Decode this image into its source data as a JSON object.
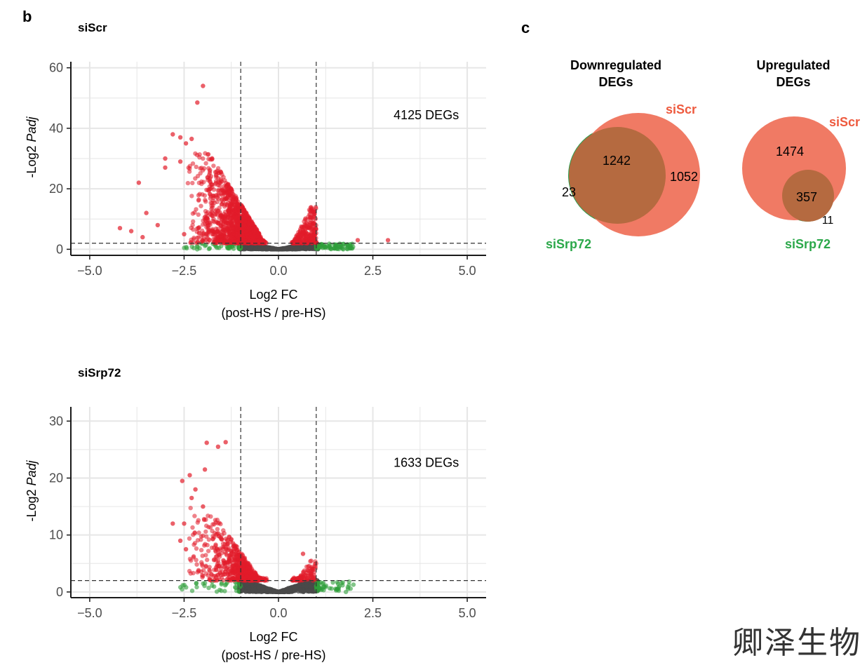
{
  "panel_b_label": "b",
  "panel_c_label": "c",
  "watermark": "卿泽生物",
  "colors": {
    "up_down_sig": "#e21c2a",
    "below_fc_sig": "#2e9e3a",
    "nonsig": "#4a4a4a",
    "venn_siscr": "#f07a64",
    "venn_sisrp72": "#2e9e4f",
    "venn_overlap": "#b56a40",
    "venn_label_siscr": "#ee5a3e",
    "venn_label_sisrp72": "#2ba84a",
    "grid": "#e6e6e6"
  },
  "chart_data": [
    {
      "type": "scatter",
      "title": "siScr",
      "xlabel_line1": "Log2 FC",
      "xlabel_line2": "(post-HS / pre-HS)",
      "ylabel_prefix": "-Log2 ",
      "ylabel_italic": "Padj",
      "xlim": [
        -5.5,
        5.5
      ],
      "ylim": [
        -2,
        62
      ],
      "xticks": [
        -5.0,
        -2.5,
        0.0,
        2.5,
        5.0
      ],
      "xtick_labels": [
        "−5.0",
        "−2.5",
        "0.0",
        "2.5",
        "5.0"
      ],
      "yticks": [
        0,
        20,
        40,
        60
      ],
      "ytick_labels": [
        "0",
        "20",
        "40",
        "60"
      ],
      "fc_threshold": [
        -1,
        1
      ],
      "padj_threshold": 2,
      "annotation": "4125 DEGs",
      "annotation_at": [
        3.05,
        43
      ],
      "outliers_red": [
        [
          -2.0,
          54
        ],
        [
          -2.15,
          48.5
        ],
        [
          -2.8,
          38
        ],
        [
          -2.6,
          37
        ],
        [
          -2.3,
          36.5
        ],
        [
          -2.45,
          35
        ],
        [
          -3.0,
          30
        ],
        [
          -3.0,
          27
        ],
        [
          -2.6,
          29
        ],
        [
          -3.7,
          22
        ],
        [
          -3.5,
          12
        ],
        [
          -3.2,
          8
        ],
        [
          -3.9,
          6
        ],
        [
          -4.2,
          7
        ],
        [
          -3.6,
          4
        ],
        [
          -2.5,
          5
        ],
        [
          2.9,
          3
        ],
        [
          2.1,
          3
        ]
      ],
      "clusters": {
        "left_peak": 32,
        "left_spread": 2.4,
        "right_peak": 14,
        "right_spread": 0.35,
        "red_left_n": 1400,
        "red_right_n": 260,
        "green_n": 140,
        "grey_n": 900
      }
    },
    {
      "type": "scatter",
      "title": "siSrp72",
      "xlabel_line1": "Log2 FC",
      "xlabel_line2": "(post-HS / pre-HS)",
      "ylabel_prefix": "-Log2 ",
      "ylabel_italic": "Padj",
      "xlim": [
        -5.5,
        5.5
      ],
      "ylim": [
        -1,
        32.5
      ],
      "xticks": [
        -5.0,
        -2.5,
        0.0,
        2.5,
        5.0
      ],
      "xtick_labels": [
        "−5.0",
        "−2.5",
        "0.0",
        "2.5",
        "5.0"
      ],
      "yticks": [
        0,
        10,
        20,
        30
      ],
      "ytick_labels": [
        "0",
        "10",
        "20",
        "30"
      ],
      "fc_threshold": [
        -1,
        1
      ],
      "padj_threshold": 2,
      "annotation": "1633 DEGs",
      "annotation_at": [
        3.05,
        22
      ],
      "outliers_red": [
        [
          -1.9,
          26.2
        ],
        [
          -1.4,
          26.3
        ],
        [
          -1.6,
          25.5
        ],
        [
          -1.95,
          21.5
        ],
        [
          -2.35,
          20.5
        ],
        [
          -2.55,
          19.5
        ],
        [
          -2.2,
          18
        ],
        [
          -2.5,
          12
        ],
        [
          -2.8,
          12
        ],
        [
          -2.3,
          16.5
        ],
        [
          -2.0,
          15
        ],
        [
          -2.6,
          9
        ],
        [
          -2.45,
          7.5
        ],
        [
          0.65,
          6.7
        ]
      ],
      "clusters": {
        "left_peak": 15,
        "left_spread": 1.7,
        "right_peak": 5.5,
        "right_spread": 0.3,
        "red_left_n": 650,
        "red_right_n": 110,
        "green_n": 90,
        "grey_n": 700
      }
    },
    {
      "type": "venn",
      "title_line1": "Downregulated",
      "title_line2": "DEGs",
      "set_a": {
        "name": "siScr",
        "only": 1052
      },
      "set_b": {
        "name": "siSrp72",
        "only": 23
      },
      "overlap": 1242
    },
    {
      "type": "venn",
      "title_line1": "Upregulated",
      "title_line2": "DEGs",
      "set_a": {
        "name": "siScr",
        "only": 1474
      },
      "set_b": {
        "name": "siSrp72",
        "only": 11
      },
      "overlap": 357
    }
  ]
}
